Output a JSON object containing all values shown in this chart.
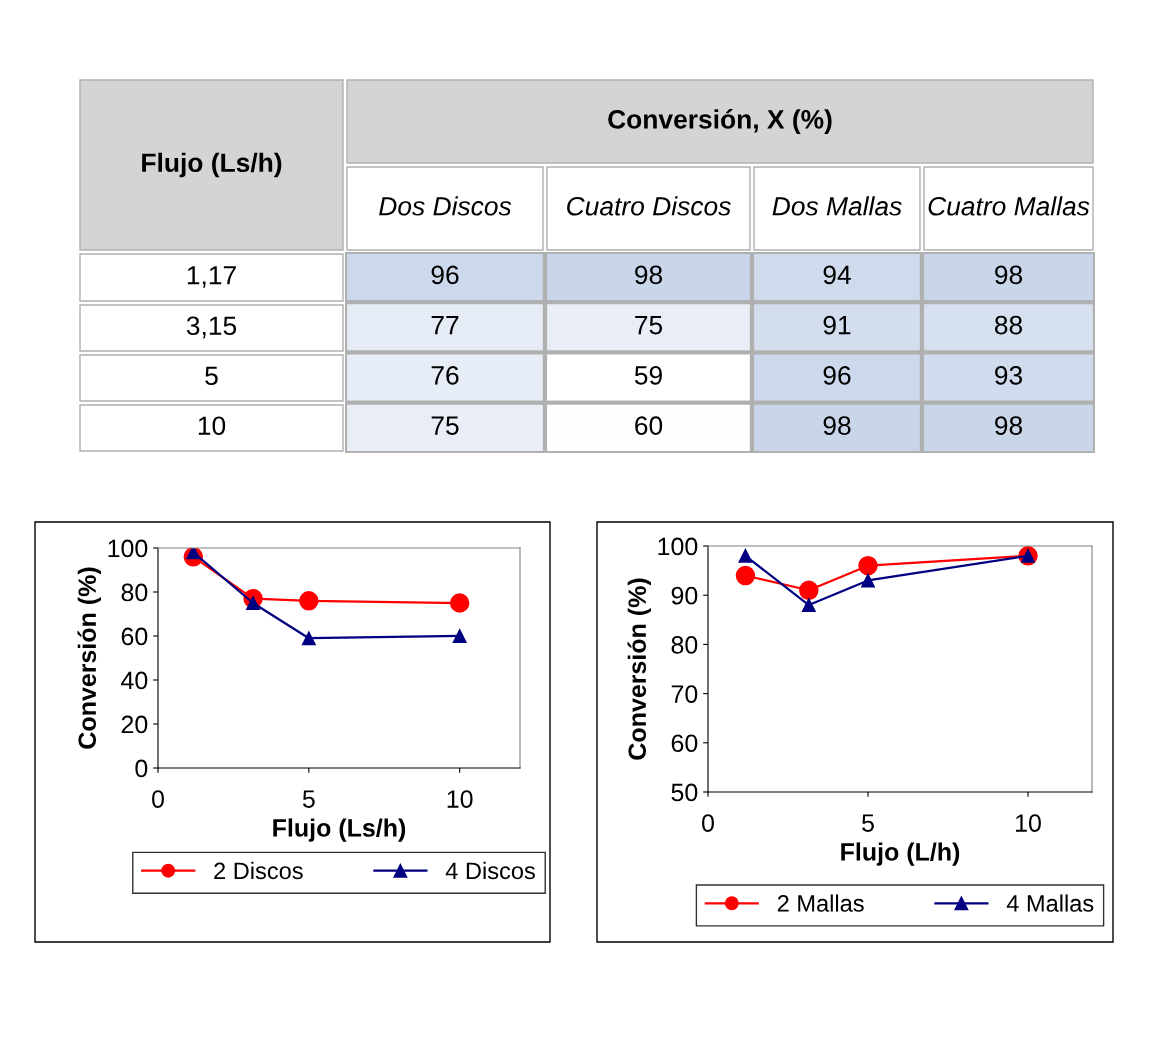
{
  "chart_data": [
    {
      "type": "heatmap",
      "data_labels": true,
      "title": "Conversión, X (%)",
      "ylabel": "Flujo (Ls/h)",
      "categories": [
        "Dos Discos",
        "Cuatro Discos",
        "Dos Mallas",
        "Cuatro Mallas"
      ],
      "y_categories": [
        "1,17",
        "3,15",
        "5",
        "10"
      ],
      "cells": [
        [
          96,
          98,
          94,
          98
        ],
        [
          77,
          75,
          91,
          88
        ],
        [
          76,
          59,
          96,
          93
        ],
        [
          75,
          60,
          98,
          98
        ]
      ]
    },
    {
      "type": "line",
      "xlabel": "Flujo (Ls/h)",
      "ylabel": "Conversión (%)",
      "x": [
        1.17,
        3.15,
        5,
        10
      ],
      "xlim": [
        0,
        12
      ],
      "xticks": [
        0,
        5,
        10
      ],
      "ylim": [
        0,
        100
      ],
      "yticks": [
        0,
        20,
        40,
        60,
        80,
        100
      ],
      "grid": false,
      "legend": "bottom",
      "line_style": "solid",
      "series": [
        {
          "name": "2 Discos",
          "color": "#ff0000",
          "marker": "circle",
          "values": [
            96,
            77,
            76,
            75
          ]
        },
        {
          "name": "4 Discos",
          "color": "#000080",
          "marker": "triangle",
          "values": [
            98,
            75,
            59,
            60
          ]
        }
      ]
    },
    {
      "type": "line",
      "xlabel": "Flujo (L/h)",
      "ylabel": "Conversión (%)",
      "x": [
        1.17,
        3.15,
        5,
        10
      ],
      "xlim": [
        0,
        12
      ],
      "xticks": [
        0,
        5,
        10
      ],
      "ylim": [
        50,
        100
      ],
      "yticks": [
        50,
        60,
        70,
        80,
        90,
        100
      ],
      "grid": false,
      "legend": "bottom",
      "line_style": "solid",
      "series": [
        {
          "name": "2 Mallas",
          "color": "#ff0000",
          "marker": "circle",
          "values": [
            94,
            91,
            96,
            98
          ]
        },
        {
          "name": "4 Mallas",
          "color": "#000080",
          "marker": "triangle",
          "values": [
            98,
            88,
            93,
            98
          ]
        }
      ]
    }
  ]
}
